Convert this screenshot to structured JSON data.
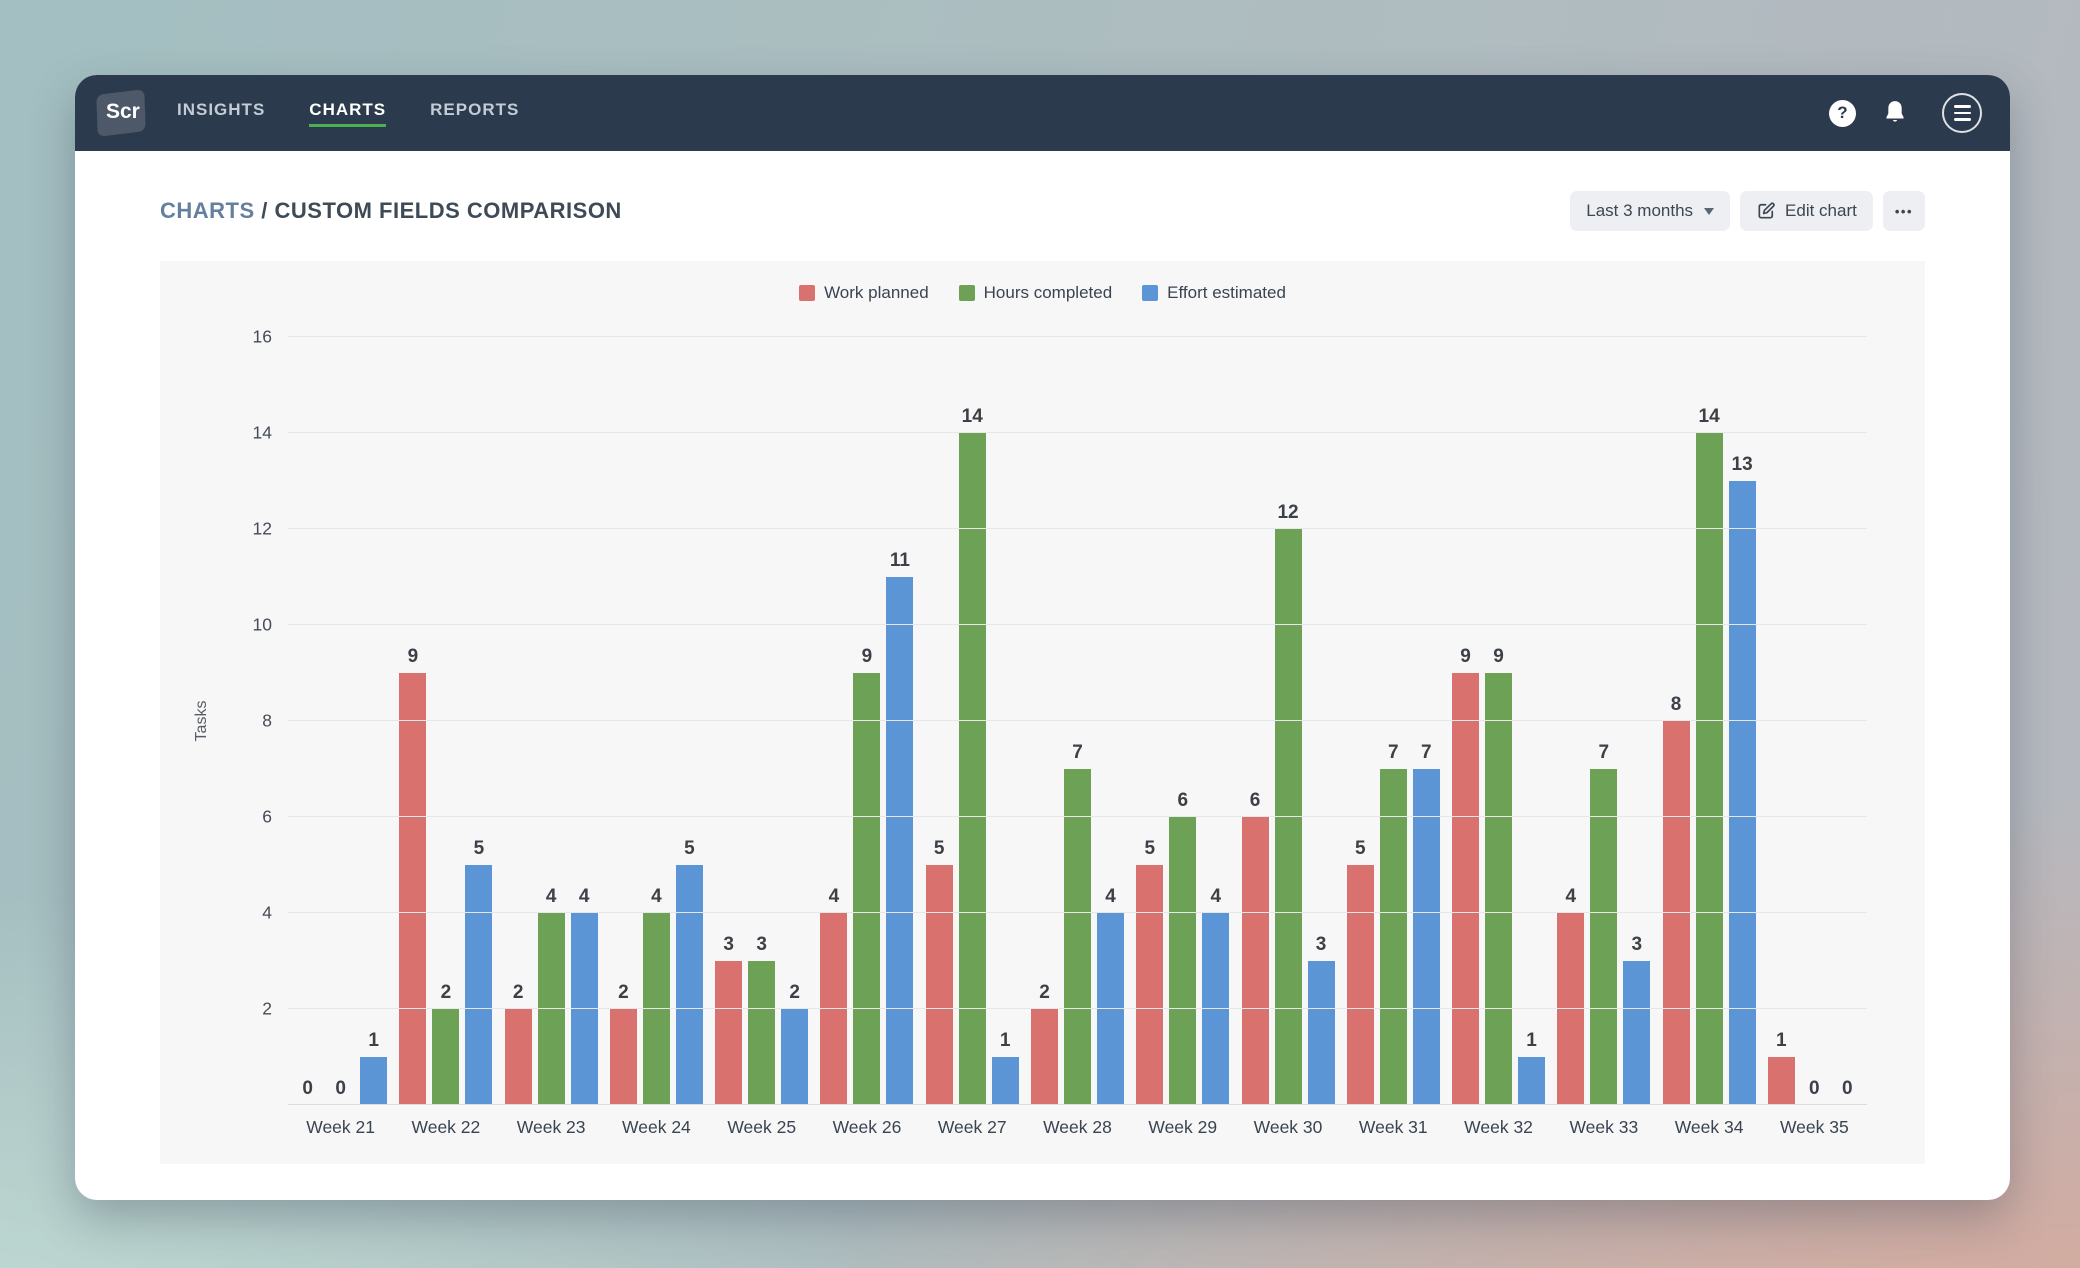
{
  "navbar": {
    "logo_text": "Scr",
    "items": [
      {
        "label": "INSIGHTS",
        "active": false
      },
      {
        "label": "CHARTS",
        "active": true
      },
      {
        "label": "REPORTS",
        "active": false
      }
    ],
    "help_label": "?"
  },
  "header": {
    "breadcrumb_section": "CHARTS",
    "breadcrumb_separator": " / ",
    "title": "CUSTOM FIELDS COMPARISON",
    "range_button": "Last 3 months",
    "edit_button": "Edit chart",
    "more_label": "•••"
  },
  "chart_data": {
    "type": "bar",
    "title": "",
    "xlabel": "",
    "ylabel": "Tasks",
    "ylim": [
      0,
      16
    ],
    "yticks": [
      2,
      4,
      6,
      8,
      10,
      12,
      14,
      16
    ],
    "grid": true,
    "legend_position": "top",
    "categories": [
      "Week 21",
      "Week 22",
      "Week 23",
      "Week 24",
      "Week 25",
      "Week 26",
      "Week 27",
      "Week 28",
      "Week 29",
      "Week 30",
      "Week 31",
      "Week 32",
      "Week 33",
      "Week 34",
      "Week 35"
    ],
    "series": [
      {
        "name": "Work planned",
        "color": "#d9716f",
        "values": [
          0,
          9,
          2,
          2,
          3,
          4,
          5,
          2,
          5,
          6,
          5,
          9,
          4,
          8,
          1
        ]
      },
      {
        "name": "Hours completed",
        "color": "#6da155",
        "values": [
          0,
          2,
          4,
          4,
          3,
          9,
          14,
          7,
          6,
          12,
          7,
          9,
          7,
          14,
          0
        ]
      },
      {
        "name": "Effort estimated",
        "color": "#5b95d6",
        "values": [
          1,
          5,
          4,
          5,
          2,
          11,
          1,
          4,
          4,
          3,
          7,
          1,
          3,
          13,
          0
        ]
      }
    ]
  },
  "colors": {
    "navbar_bg": "#2b3a4c",
    "active_underline": "#4caf50",
    "panel_bg": "#f7f7f8",
    "breadcrumb_link": "#64809e",
    "title_text": "#3f4a57"
  }
}
